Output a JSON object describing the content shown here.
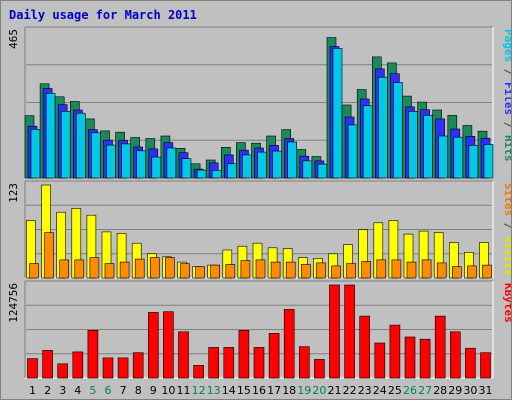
{
  "chart_data": {
    "type": "bar",
    "title": "Daily usage for March 2011",
    "categories": [
      "1",
      "2",
      "3",
      "4",
      "5",
      "6",
      "7",
      "8",
      "9",
      "10",
      "11",
      "12",
      "13",
      "14",
      "15",
      "16",
      "17",
      "18",
      "19",
      "20",
      "21",
      "22",
      "23",
      "24",
      "25",
      "26",
      "27",
      "28",
      "29",
      "30",
      "31"
    ],
    "weekend_days": [
      "5",
      "6",
      "12",
      "13",
      "19",
      "20",
      "26",
      "27"
    ],
    "panels": [
      {
        "id": "hits-panel",
        "ymax_label": "465",
        "ylim": [
          0,
          465
        ],
        "axis_label_parts": [
          {
            "text": "Pages",
            "color": "#00c8e6"
          },
          {
            "text": " / ",
            "color": "#444444"
          },
          {
            "text": "Files",
            "color": "#2e2eff"
          },
          {
            "text": " / ",
            "color": "#444444"
          },
          {
            "text": "Hits",
            "color": "#1a8a5a"
          }
        ],
        "series": [
          {
            "name": "Hits",
            "color": "#1a8a5a",
            "values": [
              197,
              298,
              257,
              242,
              187,
              149,
              145,
              128,
              125,
              133,
              94,
              45,
              57,
              97,
              112,
              110,
              133,
              153,
              90,
              68,
              444,
              231,
              280,
              383,
              364,
              259,
              240,
              215,
              198,
              166,
              148
            ]
          },
          {
            "name": "Files",
            "color": "#2e2eff",
            "values": [
              164,
              283,
              232,
              215,
              153,
              120,
              119,
              98,
              92,
              112,
              80,
              28,
              48,
              73,
              88,
              95,
              103,
              125,
              69,
              54,
              416,
              193,
              250,
              345,
              330,
              225,
              216,
              187,
              155,
              132,
              126
            ]
          },
          {
            "name": "Pages",
            "color": "#00c8e6",
            "values": [
              154,
              268,
              211,
              205,
              143,
              104,
              108,
              86,
              66,
              95,
              61,
              25,
              24,
              45,
              73,
              82,
              85,
              114,
              54,
              44,
              410,
              168,
              229,
              319,
              302,
              211,
              198,
              133,
              129,
              103,
              106
            ]
          }
        ]
      },
      {
        "id": "visits-panel",
        "ymax_label": "123",
        "ylim": [
          0,
          123
        ],
        "axis_label_parts": [
          {
            "text": "Sites",
            "color": "#f07800"
          },
          {
            "text": " / ",
            "color": "#444444"
          },
          {
            "text": "Visits",
            "color": "#e6e600"
          }
        ],
        "series": [
          {
            "name": "Visits",
            "color": "#ffff00",
            "values": [
              76,
              123,
              87,
              92,
              83,
              61,
              59,
              46,
              32,
              28,
              21,
              15,
              17,
              37,
              42,
              46,
              40,
              39,
              27,
              26,
              32,
              44,
              64,
              73,
              76,
              58,
              62,
              60,
              47,
              34,
              47
            ]
          },
          {
            "name": "Sites",
            "color": "#ff8c00",
            "values": [
              19,
              60,
              24,
              24,
              27,
              19,
              21,
              25,
              27,
              27,
              19,
              15,
              17,
              18,
              23,
              24,
              21,
              21,
              18,
              20,
              16,
              19,
              22,
              24,
              24,
              21,
              24,
              20,
              15,
              16,
              17
            ]
          }
        ]
      },
      {
        "id": "kbytes-panel",
        "ymax_label": "124756",
        "ylim": [
          0,
          124756
        ],
        "axis_label_parts": [
          {
            "text": "KBytes",
            "color": "#ff0000"
          }
        ],
        "series": [
          {
            "name": "KBytes",
            "color": "#ff0000",
            "values": [
              26000,
              37000,
              19000,
              35000,
              64000,
              27000,
              27000,
              34000,
              88000,
              89000,
              62000,
              17000,
              41000,
              41000,
              64000,
              41000,
              60000,
              92000,
              42000,
              25000,
              124756,
              124756,
              83000,
              47000,
              71000,
              55000,
              52000,
              83000,
              62000,
              40000,
              34000
            ]
          }
        ]
      }
    ],
    "xlabel": "",
    "grid": true
  },
  "colors": {
    "background": "#c0c0c0",
    "plot_background": "#c0c0c0",
    "title": "#0000cc",
    "weekday_label": "#000000",
    "weekend_label": "#00805a"
  }
}
